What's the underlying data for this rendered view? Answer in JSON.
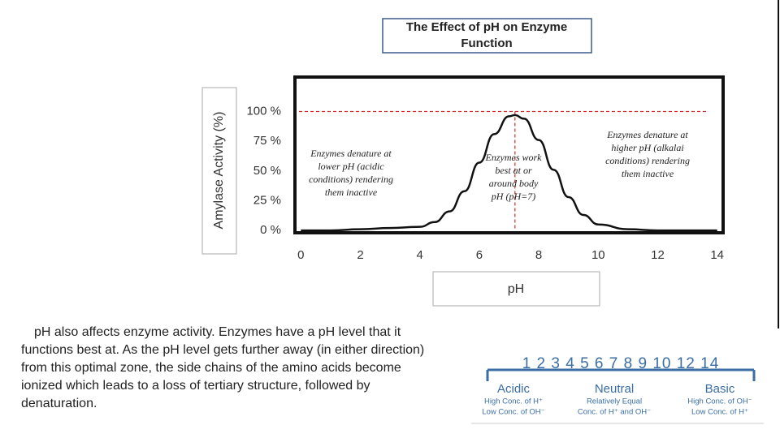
{
  "chart_data": {
    "type": "line",
    "title": "The Effect of pH on Enzyme Function",
    "y_label": "Amylase Activity (%)",
    "x_label": "pH",
    "x": [
      0,
      1,
      2,
      3,
      4,
      4.5,
      5,
      5.5,
      6,
      6.5,
      7,
      7.2,
      7.5,
      8,
      8.5,
      9,
      9.5,
      10,
      11,
      12,
      13,
      14
    ],
    "series": [
      {
        "name": "Amylase activity",
        "color": "#111111",
        "values": [
          0,
          0,
          1,
          2,
          3,
          7,
          16,
          33,
          57,
          81,
          96,
          97,
          94,
          76,
          51,
          28,
          13,
          5,
          1,
          0,
          0,
          0
        ]
      }
    ],
    "xlim": [
      -0.2,
      14.2
    ],
    "ylim": [
      -2,
      129
    ],
    "xticks": [
      0,
      2,
      4,
      6,
      8,
      10,
      12,
      14
    ],
    "yticks": [
      {
        "value": 0,
        "label": "0 %"
      },
      {
        "value": 25,
        "label": "25 %"
      },
      {
        "value": 50,
        "label": "50 %"
      },
      {
        "value": 75,
        "label": "75 %"
      },
      {
        "value": 100,
        "label": "100 %"
      }
    ],
    "reference_lines": {
      "y": 100,
      "x": 7.2,
      "color": "#d62828"
    },
    "annotations": [
      [
        "Enzymes denature at",
        "lower pH (acidic",
        "conditions) rendering",
        "them inactive"
      ],
      [
        "Enzymes work",
        "best at or",
        "around body",
        "pH (pH=7)"
      ],
      [
        "Enzymes denature at",
        "higher pH (alkalai",
        "conditions) rendering",
        "them inactive"
      ]
    ]
  },
  "paragraph": "pH also affects enzyme activity. Enzymes have a pH level that it functions best at. As the pH level gets further away (in either direction) from this optimal zone, the side chains of the amino acids become ionized which leads to a loss of tertiary structure, followed by denaturation.",
  "ph_scale": {
    "numbers": "1 2 3 4 5 6 7 8 9 10 12 14",
    "groups": [
      {
        "label": "Acidic",
        "lines": [
          "High Conc. of H⁺",
          "Low Conc. of OH⁻"
        ]
      },
      {
        "label": "Neutral",
        "lines": [
          "Relatively Equal",
          "Conc. of H⁺ and OH⁻"
        ]
      },
      {
        "label": "Basic",
        "lines": [
          "High Conc. of OH⁻",
          "Low Conc. of H⁺"
        ]
      }
    ]
  }
}
